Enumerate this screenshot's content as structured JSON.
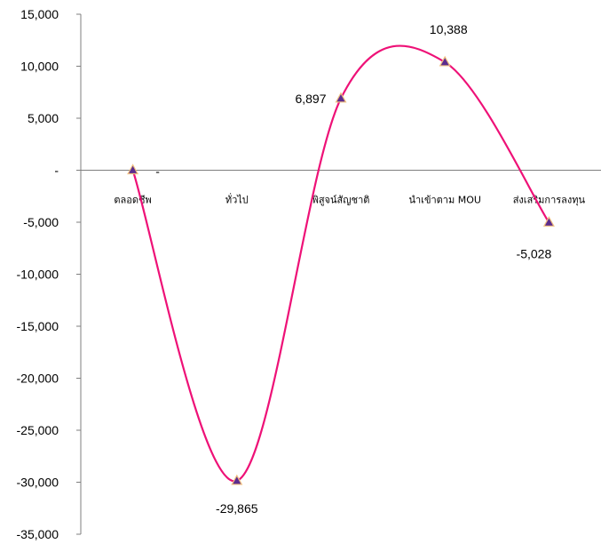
{
  "chart_data": {
    "type": "line",
    "smooth": true,
    "categories": [
      "ตลอดชีพ",
      "ทั่วไป",
      "พิสูจน์สัญชาติ",
      "นำเข้าตาม MOU",
      "ส่งเสริมการลงทุน"
    ],
    "series": [
      {
        "values": [
          0,
          -29865,
          6897,
          10388,
          -5028
        ],
        "data_labels": [
          "-",
          "-29,865",
          "6,897",
          "10,388",
          "-5,028"
        ]
      }
    ],
    "ylim": [
      -35000,
      15000
    ],
    "yticks": [
      15000,
      10000,
      5000,
      0,
      -5000,
      -10000,
      -15000,
      -20000,
      -25000,
      -30000,
      -35000
    ],
    "ytick_labels": [
      "15,000",
      "10,000",
      "5,000",
      "-",
      "-5,000",
      "-10,000",
      "-15,000",
      "-20,000",
      "-25,000",
      "-30,000",
      "-35,000"
    ],
    "title": "",
    "xlabel": "",
    "ylabel": "",
    "grid": false,
    "legend": "none",
    "line_color": "#ee1177",
    "marker_fill": "#5b2c8f",
    "marker_edge": "#f0c080"
  }
}
